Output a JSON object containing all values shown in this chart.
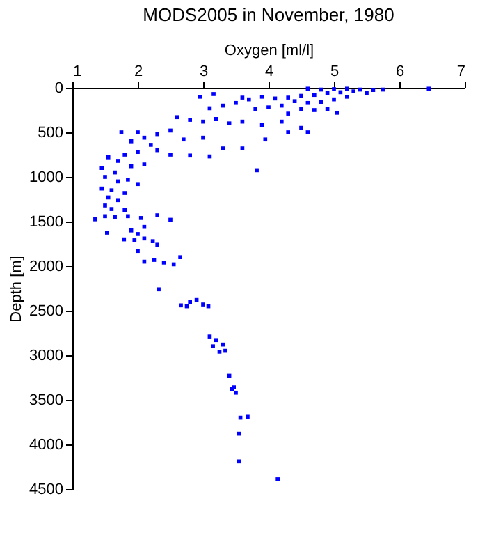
{
  "chart_data": {
    "type": "scatter",
    "title": "MODS2005 in November, 1980",
    "xlabel": "Oxygen [ml/l]",
    "ylabel": "Depth [m]",
    "xlim": [
      1,
      7
    ],
    "xticks": [
      1,
      2,
      3,
      4,
      5,
      6,
      7
    ],
    "ylim": [
      4500,
      0
    ],
    "yticks": [
      0,
      500,
      1000,
      1500,
      2000,
      2500,
      3000,
      3500,
      4000,
      4500
    ],
    "marker": "square",
    "grid": false,
    "series": [
      {
        "color": "#0000ff",
        "x": [
          4.6,
          4.8,
          5.0,
          5.2,
          5.4,
          5.6,
          5.75,
          6.45,
          5.3,
          5.1,
          4.9,
          4.7,
          4.5,
          4.3,
          4.1,
          3.9,
          3.7,
          4.4,
          4.6,
          4.8,
          5.0,
          5.2,
          4.2,
          4.0,
          3.8,
          4.5,
          4.7,
          4.3,
          3.5,
          3.3,
          3.1,
          2.95,
          3.16,
          3.6,
          5.5,
          4.9,
          5.05,
          2.6,
          2.8,
          3.0,
          3.2,
          3.4,
          3.6,
          3.9,
          4.2,
          4.5,
          4.6,
          4.3,
          3.95,
          3.6,
          3.3,
          3.0,
          2.7,
          2.5,
          2.3,
          2.1,
          2.0,
          1.75,
          1.9,
          2.2,
          2.5,
          2.8,
          3.1,
          2.3,
          2.0,
          1.8,
          1.55,
          1.7,
          1.45,
          1.65,
          1.9,
          2.1,
          1.5,
          1.7,
          1.85,
          2.0,
          1.45,
          1.6,
          1.8,
          1.55,
          1.7,
          1.5,
          1.6,
          1.8,
          3.82,
          1.35,
          1.5,
          1.65,
          1.85,
          2.05,
          2.3,
          2.5,
          1.53,
          1.79,
          1.95,
          2.1,
          2.23,
          2.0,
          2.3,
          2.1,
          1.9,
          2.1,
          2.25,
          2.4,
          2.55,
          2.65,
          2.0,
          2.32,
          2.66,
          2.8,
          2.9,
          3.0,
          3.08,
          2.75,
          3.1,
          3.2,
          3.15,
          3.3,
          3.34,
          3.25,
          3.4,
          3.44,
          3.5,
          3.47,
          3.57,
          3.68,
          3.55,
          3.55,
          4.14
        ],
        "values": [
          10,
          20,
          15,
          10,
          20,
          25,
          20,
          10,
          40,
          50,
          60,
          80,
          90,
          110,
          120,
          100,
          130,
          150,
          170,
          160,
          130,
          100,
          200,
          220,
          240,
          240,
          250,
          290,
          170,
          200,
          230,
          100,
          70,
          110,
          60,
          240,
          280,
          330,
          360,
          380,
          350,
          400,
          380,
          420,
          380,
          450,
          500,
          500,
          580,
          680,
          680,
          560,
          580,
          480,
          520,
          560,
          500,
          500,
          600,
          640,
          750,
          760,
          770,
          700,
          720,
          750,
          780,
          820,
          900,
          950,
          880,
          860,
          1000,
          1050,
          1030,
          1080,
          1130,
          1150,
          1180,
          1230,
          1260,
          1320,
          1360,
          1370,
          925,
          1475,
          1440,
          1450,
          1440,
          1460,
          1430,
          1480,
          1625,
          1700,
          1710,
          1690,
          1720,
          1640,
          1760,
          1560,
          1600,
          1950,
          1930,
          1960,
          1980,
          1900,
          1830,
          2260,
          2440,
          2400,
          2380,
          2430,
          2450,
          2450,
          2790,
          2830,
          2900,
          2880,
          2950,
          2960,
          3230,
          3380,
          3420,
          3360,
          3700,
          3690,
          3880,
          4190,
          4390
        ]
      }
    ]
  }
}
